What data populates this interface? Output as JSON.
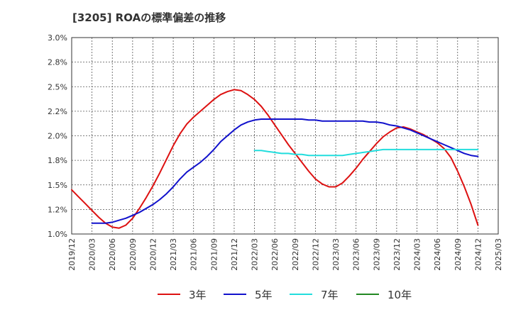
{
  "chart_data": {
    "type": "line",
    "title": "[3205]  ROAの標準偏差の推移",
    "xlabel": "",
    "ylabel": "",
    "ylim": [
      1.0,
      3.0
    ],
    "y_ticks": [
      "1.0%",
      "1.2%",
      "1.5%",
      "1.8%",
      "2.0%",
      "2.2%",
      "2.5%",
      "2.8%",
      "3.0%"
    ],
    "x_ticks": [
      "2019/12",
      "2020/03",
      "2020/06",
      "2020/09",
      "2020/12",
      "2021/03",
      "2021/06",
      "2021/09",
      "2021/12",
      "2022/03",
      "2022/06",
      "2022/09",
      "2022/12",
      "2023/03",
      "2023/06",
      "2023/09",
      "2023/12",
      "2024/03",
      "2024/06",
      "2024/09",
      "2024/12",
      "2025/03"
    ],
    "grid": true,
    "legend_position": "bottom",
    "series": [
      {
        "name": "3年",
        "color": "#dd1111",
        "points": [
          [
            "2019/12",
            1.45
          ],
          [
            "2020/01",
            1.38
          ],
          [
            "2020/02",
            1.31
          ],
          [
            "2020/03",
            1.24
          ],
          [
            "2020/04",
            1.17
          ],
          [
            "2020/05",
            1.11
          ],
          [
            "2020/06",
            1.07
          ],
          [
            "2020/07",
            1.06
          ],
          [
            "2020/08",
            1.09
          ],
          [
            "2020/09",
            1.16
          ],
          [
            "2020/10",
            1.26
          ],
          [
            "2020/11",
            1.37
          ],
          [
            "2020/12",
            1.49
          ],
          [
            "2021/01",
            1.62
          ],
          [
            "2021/02",
            1.76
          ],
          [
            "2021/03",
            1.9
          ],
          [
            "2021/04",
            2.02
          ],
          [
            "2021/05",
            2.12
          ],
          [
            "2021/06",
            2.19
          ],
          [
            "2021/07",
            2.25
          ],
          [
            "2021/08",
            2.31
          ],
          [
            "2021/09",
            2.37
          ],
          [
            "2021/10",
            2.42
          ],
          [
            "2021/11",
            2.45
          ],
          [
            "2021/12",
            2.47
          ],
          [
            "2022/01",
            2.46
          ],
          [
            "2022/02",
            2.42
          ],
          [
            "2022/03",
            2.37
          ],
          [
            "2022/04",
            2.3
          ],
          [
            "2022/05",
            2.21
          ],
          [
            "2022/06",
            2.11
          ],
          [
            "2022/07",
            2.01
          ],
          [
            "2022/08",
            1.91
          ],
          [
            "2022/09",
            1.82
          ],
          [
            "2022/10",
            1.73
          ],
          [
            "2022/11",
            1.64
          ],
          [
            "2022/12",
            1.56
          ],
          [
            "2023/01",
            1.51
          ],
          [
            "2023/02",
            1.48
          ],
          [
            "2023/03",
            1.48
          ],
          [
            "2023/04",
            1.52
          ],
          [
            "2023/05",
            1.59
          ],
          [
            "2023/06",
            1.67
          ],
          [
            "2023/07",
            1.76
          ],
          [
            "2023/08",
            1.84
          ],
          [
            "2023/09",
            1.92
          ],
          [
            "2023/10",
            1.99
          ],
          [
            "2023/11",
            2.04
          ],
          [
            "2023/12",
            2.08
          ],
          [
            "2024/01",
            2.09
          ],
          [
            "2024/02",
            2.07
          ],
          [
            "2024/03",
            2.04
          ],
          [
            "2024/04",
            2.01
          ],
          [
            "2024/05",
            1.97
          ],
          [
            "2024/06",
            1.93
          ],
          [
            "2024/07",
            1.87
          ],
          [
            "2024/08",
            1.78
          ],
          [
            "2024/09",
            1.64
          ],
          [
            "2024/10",
            1.48
          ],
          [
            "2024/11",
            1.3
          ],
          [
            "2024/12",
            1.09
          ]
        ]
      },
      {
        "name": "5年",
        "color": "#1111cc",
        "points": [
          [
            "2020/03",
            1.11
          ],
          [
            "2020/04",
            1.11
          ],
          [
            "2020/05",
            1.11
          ],
          [
            "2020/06",
            1.12
          ],
          [
            "2020/07",
            1.14
          ],
          [
            "2020/08",
            1.16
          ],
          [
            "2020/09",
            1.19
          ],
          [
            "2020/10",
            1.22
          ],
          [
            "2020/11",
            1.26
          ],
          [
            "2020/12",
            1.3
          ],
          [
            "2021/01",
            1.35
          ],
          [
            "2021/02",
            1.41
          ],
          [
            "2021/03",
            1.48
          ],
          [
            "2021/04",
            1.56
          ],
          [
            "2021/05",
            1.63
          ],
          [
            "2021/06",
            1.68
          ],
          [
            "2021/07",
            1.73
          ],
          [
            "2021/08",
            1.79
          ],
          [
            "2021/09",
            1.86
          ],
          [
            "2021/10",
            1.94
          ],
          [
            "2021/11",
            2.0
          ],
          [
            "2021/12",
            2.06
          ],
          [
            "2022/01",
            2.11
          ],
          [
            "2022/02",
            2.14
          ],
          [
            "2022/03",
            2.16
          ],
          [
            "2022/04",
            2.17
          ],
          [
            "2022/05",
            2.17
          ],
          [
            "2022/06",
            2.17
          ],
          [
            "2022/07",
            2.17
          ],
          [
            "2022/08",
            2.17
          ],
          [
            "2022/09",
            2.17
          ],
          [
            "2022/10",
            2.17
          ],
          [
            "2022/11",
            2.16
          ],
          [
            "2022/12",
            2.16
          ],
          [
            "2023/01",
            2.15
          ],
          [
            "2023/02",
            2.15
          ],
          [
            "2023/03",
            2.15
          ],
          [
            "2023/04",
            2.15
          ],
          [
            "2023/05",
            2.15
          ],
          [
            "2023/06",
            2.15
          ],
          [
            "2023/07",
            2.15
          ],
          [
            "2023/08",
            2.14
          ],
          [
            "2023/09",
            2.14
          ],
          [
            "2023/10",
            2.13
          ],
          [
            "2023/11",
            2.11
          ],
          [
            "2023/12",
            2.1
          ],
          [
            "2024/01",
            2.08
          ],
          [
            "2024/02",
            2.06
          ],
          [
            "2024/03",
            2.03
          ],
          [
            "2024/04",
            2.0
          ],
          [
            "2024/05",
            1.97
          ],
          [
            "2024/06",
            1.94
          ],
          [
            "2024/07",
            1.91
          ],
          [
            "2024/08",
            1.88
          ],
          [
            "2024/09",
            1.85
          ],
          [
            "2024/10",
            1.82
          ],
          [
            "2024/11",
            1.8
          ],
          [
            "2024/12",
            1.79
          ]
        ]
      },
      {
        "name": "7年",
        "color": "#22dddd",
        "points": [
          [
            "2022/03",
            1.85
          ],
          [
            "2022/04",
            1.85
          ],
          [
            "2022/05",
            1.84
          ],
          [
            "2022/06",
            1.83
          ],
          [
            "2022/07",
            1.82
          ],
          [
            "2022/08",
            1.82
          ],
          [
            "2022/09",
            1.81
          ],
          [
            "2022/10",
            1.81
          ],
          [
            "2022/11",
            1.8
          ],
          [
            "2022/12",
            1.8
          ],
          [
            "2023/01",
            1.8
          ],
          [
            "2023/02",
            1.8
          ],
          [
            "2023/03",
            1.8
          ],
          [
            "2023/04",
            1.8
          ],
          [
            "2023/05",
            1.81
          ],
          [
            "2023/06",
            1.82
          ],
          [
            "2023/07",
            1.83
          ],
          [
            "2023/08",
            1.84
          ],
          [
            "2023/09",
            1.85
          ],
          [
            "2023/10",
            1.86
          ],
          [
            "2023/11",
            1.86
          ],
          [
            "2023/12",
            1.86
          ],
          [
            "2024/01",
            1.86
          ],
          [
            "2024/02",
            1.86
          ],
          [
            "2024/03",
            1.86
          ],
          [
            "2024/04",
            1.86
          ],
          [
            "2024/05",
            1.86
          ],
          [
            "2024/06",
            1.86
          ],
          [
            "2024/07",
            1.86
          ],
          [
            "2024/08",
            1.86
          ],
          [
            "2024/09",
            1.86
          ],
          [
            "2024/10",
            1.86
          ],
          [
            "2024/11",
            1.86
          ],
          [
            "2024/12",
            1.86
          ]
        ]
      },
      {
        "name": "10年",
        "color": "#228822",
        "points": []
      }
    ]
  }
}
